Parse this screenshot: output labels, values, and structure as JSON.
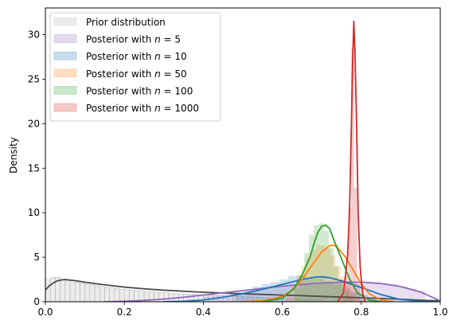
{
  "chart_data": {
    "type": "area",
    "xlabel": "",
    "ylabel": "Density",
    "xlim": [
      0.0,
      1.0
    ],
    "ylim": [
      0,
      33
    ],
    "x_ticks": [
      "0.0",
      "0.2",
      "0.4",
      "0.6",
      "0.8",
      "1.0"
    ],
    "x_tick_values": [
      0.0,
      0.2,
      0.4,
      0.6,
      0.8,
      1.0
    ],
    "y_ticks": [
      "0",
      "5",
      "10",
      "15",
      "20",
      "25",
      "30"
    ],
    "y_tick_values": [
      0,
      5,
      10,
      15,
      20,
      25,
      30
    ],
    "grid": false,
    "legend_position": "top-left",
    "legend": [
      {
        "prefix": "Prior distribution",
        "n": ""
      },
      {
        "prefix": "Posterior with ",
        "n": "5"
      },
      {
        "prefix": "Posterior with ",
        "n": "10"
      },
      {
        "prefix": "Posterior with ",
        "n": "50"
      },
      {
        "prefix": "Posterior with ",
        "n": "100"
      },
      {
        "prefix": "Posterior with ",
        "n": "1000"
      }
    ],
    "n_symbol": "n",
    "equals_sign": " = ",
    "series": [
      {
        "name": "Prior distribution",
        "line_color": "#4d4d4d",
        "fill_color": "#bfbfbf",
        "curve": [
          [
            0.0,
            1.3
          ],
          [
            0.01,
            1.8
          ],
          [
            0.02,
            2.1
          ],
          [
            0.03,
            2.35
          ],
          [
            0.04,
            2.45
          ],
          [
            0.05,
            2.5
          ],
          [
            0.06,
            2.45
          ],
          [
            0.08,
            2.35
          ],
          [
            0.1,
            2.2
          ],
          [
            0.15,
            1.9
          ],
          [
            0.2,
            1.65
          ],
          [
            0.25,
            1.45
          ],
          [
            0.3,
            1.3
          ],
          [
            0.35,
            1.18
          ],
          [
            0.4,
            1.07
          ],
          [
            0.45,
            0.98
          ],
          [
            0.5,
            0.9
          ],
          [
            0.55,
            0.82
          ],
          [
            0.6,
            0.75
          ],
          [
            0.65,
            0.68
          ],
          [
            0.7,
            0.6
          ],
          [
            0.75,
            0.52
          ],
          [
            0.8,
            0.45
          ],
          [
            0.85,
            0.37
          ],
          [
            0.9,
            0.28
          ],
          [
            0.95,
            0.18
          ],
          [
            1.0,
            0.1
          ]
        ],
        "bins": {
          "start": 0.0,
          "width": 0.0125,
          "heights": [
            2.5,
            2.7,
            2.75,
            2.5,
            2.4,
            2.35,
            2.2,
            2.1,
            2.0,
            1.95,
            1.8,
            1.7,
            1.6,
            1.55,
            1.5,
            1.4,
            1.35,
            1.3,
            1.25,
            1.2,
            1.15,
            1.1,
            1.05,
            1.0,
            1.0,
            0.95,
            0.9,
            0.9,
            0.85,
            0.85,
            0.8,
            0.8,
            0.75,
            0.75,
            0.7,
            0.7,
            0.65,
            0.65,
            0.6,
            0.6,
            0.55,
            0.55,
            0.5,
            0.5,
            0.45,
            0.45,
            0.4,
            0.4,
            0.35,
            0.35,
            0.3,
            0.3,
            0.25,
            0.25,
            0.2,
            0.2
          ]
        }
      },
      {
        "name": "Posterior with n = 5",
        "line_color": "#9467bd",
        "fill_color": "#9467bd",
        "curve": [
          [
            0.15,
            0.0
          ],
          [
            0.2,
            0.05
          ],
          [
            0.25,
            0.15
          ],
          [
            0.3,
            0.3
          ],
          [
            0.35,
            0.5
          ],
          [
            0.4,
            0.75
          ],
          [
            0.45,
            1.0
          ],
          [
            0.5,
            1.25
          ],
          [
            0.55,
            1.5
          ],
          [
            0.6,
            1.75
          ],
          [
            0.65,
            1.95
          ],
          [
            0.7,
            2.1
          ],
          [
            0.75,
            2.2
          ],
          [
            0.8,
            2.2
          ],
          [
            0.85,
            2.05
          ],
          [
            0.9,
            1.7
          ],
          [
            0.95,
            1.1
          ],
          [
            0.98,
            0.5
          ],
          [
            1.0,
            0.1
          ]
        ],
        "bins": {
          "start": 0.4,
          "width": 0.0225,
          "heights": [
            0.6,
            0.7,
            0.8,
            1.0,
            1.1,
            1.3,
            1.4,
            1.5,
            1.6,
            1.7,
            1.85,
            1.95,
            2.0,
            2.1,
            2.2,
            2.2,
            2.25,
            2.2,
            2.2,
            2.1,
            2.1,
            2.0,
            1.7,
            1.5,
            1.2
          ]
        }
      },
      {
        "name": "Posterior with n = 10",
        "line_color": "#1f77b4",
        "fill_color": "#1f77b4",
        "curve": [
          [
            0.3,
            0.0
          ],
          [
            0.35,
            0.05
          ],
          [
            0.4,
            0.2
          ],
          [
            0.45,
            0.5
          ],
          [
            0.5,
            0.9
          ],
          [
            0.55,
            1.4
          ],
          [
            0.6,
            1.95
          ],
          [
            0.65,
            2.5
          ],
          [
            0.68,
            2.75
          ],
          [
            0.7,
            2.8
          ],
          [
            0.72,
            2.7
          ],
          [
            0.75,
            2.35
          ],
          [
            0.8,
            1.6
          ],
          [
            0.85,
            0.8
          ],
          [
            0.9,
            0.25
          ],
          [
            0.95,
            0.05
          ],
          [
            1.0,
            0.0
          ]
        ],
        "bins": {
          "start": 0.48,
          "width": 0.0225,
          "heights": [
            1.0,
            1.2,
            1.7,
            2.0,
            2.2,
            2.5,
            2.9,
            2.9,
            2.7,
            2.6,
            2.3,
            2.0,
            1.5,
            1.1,
            0.8,
            0.5,
            0.3,
            0.15
          ]
        }
      },
      {
        "name": "Posterior with n = 50",
        "line_color": "#ff7f0e",
        "fill_color": "#ff7f0e",
        "curve": [
          [
            0.5,
            0.0
          ],
          [
            0.55,
            0.1
          ],
          [
            0.6,
            0.6
          ],
          [
            0.63,
            1.5
          ],
          [
            0.65,
            2.5
          ],
          [
            0.67,
            3.8
          ],
          [
            0.69,
            5.0
          ],
          [
            0.7,
            5.6
          ],
          [
            0.72,
            6.3
          ],
          [
            0.73,
            6.35
          ],
          [
            0.74,
            6.1
          ],
          [
            0.76,
            5.0
          ],
          [
            0.78,
            3.5
          ],
          [
            0.8,
            2.0
          ],
          [
            0.82,
            0.9
          ],
          [
            0.85,
            0.2
          ],
          [
            0.88,
            0.0
          ]
        ],
        "bins": {
          "start": 0.61,
          "width": 0.0125,
          "heights": [
            1.0,
            1.8,
            3.0,
            4.0,
            5.0,
            5.8,
            6.4,
            6.3,
            6.0,
            5.2,
            4.0,
            2.8,
            1.8,
            1.0,
            0.5,
            0.2
          ]
        }
      },
      {
        "name": "Posterior with n = 100",
        "line_color": "#2ca02c",
        "fill_color": "#2ca02c",
        "curve": [
          [
            0.55,
            0.0
          ],
          [
            0.6,
            0.4
          ],
          [
            0.63,
            1.5
          ],
          [
            0.65,
            3.0
          ],
          [
            0.67,
            5.0
          ],
          [
            0.68,
            6.5
          ],
          [
            0.69,
            7.8
          ],
          [
            0.7,
            8.5
          ],
          [
            0.71,
            8.6
          ],
          [
            0.72,
            8.2
          ],
          [
            0.73,
            7.0
          ],
          [
            0.75,
            4.8
          ],
          [
            0.77,
            2.6
          ],
          [
            0.79,
            1.0
          ],
          [
            0.82,
            0.2
          ],
          [
            0.85,
            0.0
          ]
        ],
        "bins": {
          "start": 0.63,
          "width": 0.0125,
          "heights": [
            1.5,
            3.0,
            5.5,
            7.5,
            8.6,
            8.8,
            8.0,
            6.0,
            4.0,
            2.5,
            1.2,
            0.4
          ]
        }
      },
      {
        "name": "Posterior with n = 1000",
        "line_color": "#d62728",
        "fill_color": "#d62728",
        "curve": [
          [
            0.74,
            0.0
          ],
          [
            0.755,
            1.0
          ],
          [
            0.765,
            5.0
          ],
          [
            0.77,
            10.0
          ],
          [
            0.775,
            20.0
          ],
          [
            0.778,
            27.0
          ],
          [
            0.781,
            31.5
          ],
          [
            0.784,
            28.0
          ],
          [
            0.788,
            20.0
          ],
          [
            0.792,
            10.0
          ],
          [
            0.797,
            4.0
          ],
          [
            0.803,
            1.0
          ],
          [
            0.81,
            0.0
          ]
        ],
        "bins": {
          "start": 0.752,
          "width": 0.0075,
          "heights": [
            0.3,
            3.0,
            10.5,
            28.5,
            12.8,
            2.0,
            0.2
          ]
        }
      }
    ]
  }
}
